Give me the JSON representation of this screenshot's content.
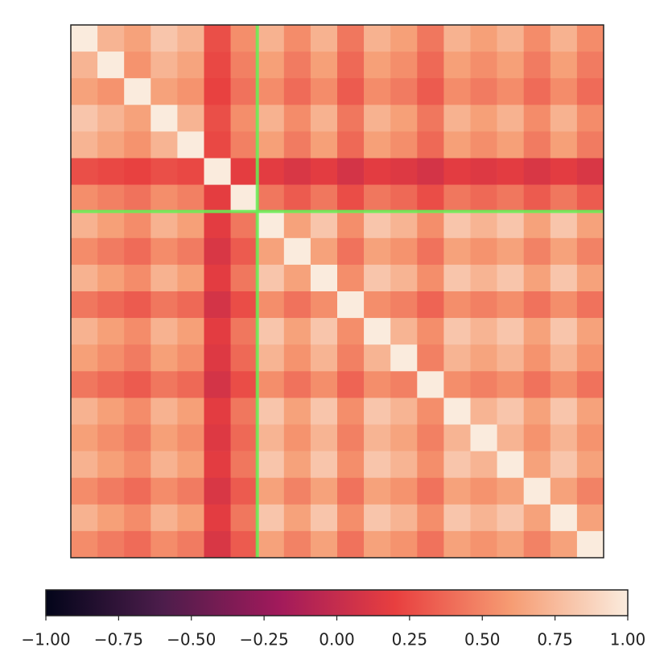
{
  "chart_data": {
    "type": "heatmap",
    "zlim": [
      -1,
      1
    ],
    "colorscale": [
      "#03051a",
      "#4c1d4b",
      "#a11a5b",
      "#e83f3f",
      "#f69c73",
      "#faebdd"
    ],
    "highlight": {
      "row": 7,
      "col": 7,
      "color": "#66ee55"
    },
    "colorbar_ticks": [
      {
        "value": -1,
        "label": "−1.00"
      },
      {
        "value": -0.75,
        "label": "−0.75"
      },
      {
        "value": -0.5,
        "label": "−0.50"
      },
      {
        "value": -0.25,
        "label": "−0.25"
      },
      {
        "value": 0,
        "label": "0.00"
      },
      {
        "value": 0.25,
        "label": "0.25"
      },
      {
        "value": 0.5,
        "label": "0.50"
      },
      {
        "value": 0.75,
        "label": "0.75"
      },
      {
        "value": 1,
        "label": "1.00"
      }
    ],
    "z": [
      [
        1,
        0.72,
        0.63,
        0.81,
        0.72,
        0.27,
        0.54,
        0.71,
        0.53,
        0.71,
        0.44,
        0.71,
        0.62,
        0.44,
        0.71,
        0.62,
        0.71,
        0.53,
        0.71,
        0.53
      ],
      [
        0.72,
        1,
        0.56,
        0.72,
        0.64,
        0.24,
        0.48,
        0.62,
        0.46,
        0.62,
        0.38,
        0.62,
        0.54,
        0.38,
        0.62,
        0.54,
        0.62,
        0.46,
        0.62,
        0.46
      ],
      [
        0.63,
        0.56,
        1,
        0.63,
        0.56,
        0.21,
        0.42,
        0.53,
        0.39,
        0.53,
        0.32,
        0.53,
        0.46,
        0.32,
        0.53,
        0.46,
        0.53,
        0.39,
        0.53,
        0.39
      ],
      [
        0.81,
        0.72,
        0.63,
        1,
        0.72,
        0.27,
        0.54,
        0.71,
        0.53,
        0.71,
        0.44,
        0.71,
        0.62,
        0.44,
        0.71,
        0.62,
        0.71,
        0.53,
        0.71,
        0.53
      ],
      [
        0.72,
        0.64,
        0.56,
        0.72,
        1,
        0.24,
        0.48,
        0.62,
        0.46,
        0.62,
        0.38,
        0.62,
        0.54,
        0.38,
        0.62,
        0.54,
        0.62,
        0.46,
        0.62,
        0.46
      ],
      [
        0.27,
        0.24,
        0.21,
        0.27,
        0.24,
        1,
        0.18,
        0.17,
        0.11,
        0.17,
        0.08,
        0.17,
        0.14,
        0.08,
        0.17,
        0.14,
        0.17,
        0.11,
        0.17,
        0.11
      ],
      [
        0.54,
        0.48,
        0.42,
        0.54,
        0.48,
        0.18,
        1,
        0.44,
        0.32,
        0.44,
        0.26,
        0.44,
        0.38,
        0.26,
        0.44,
        0.38,
        0.44,
        0.32,
        0.44,
        0.32
      ],
      [
        0.71,
        0.62,
        0.53,
        0.71,
        0.62,
        0.17,
        0.44,
        1,
        0.63,
        0.81,
        0.54,
        0.81,
        0.72,
        0.54,
        0.81,
        0.72,
        0.81,
        0.63,
        0.81,
        0.63
      ],
      [
        0.53,
        0.46,
        0.39,
        0.53,
        0.46,
        0.11,
        0.32,
        0.63,
        1,
        0.63,
        0.42,
        0.63,
        0.56,
        0.42,
        0.63,
        0.56,
        0.63,
        0.49,
        0.63,
        0.49
      ],
      [
        0.71,
        0.62,
        0.53,
        0.71,
        0.62,
        0.17,
        0.44,
        0.81,
        0.63,
        1,
        0.54,
        0.81,
        0.72,
        0.54,
        0.81,
        0.72,
        0.81,
        0.63,
        0.81,
        0.63
      ],
      [
        0.44,
        0.38,
        0.32,
        0.44,
        0.38,
        0.08,
        0.26,
        0.54,
        0.42,
        0.54,
        1,
        0.54,
        0.48,
        0.36,
        0.54,
        0.48,
        0.54,
        0.42,
        0.54,
        0.42
      ],
      [
        0.71,
        0.62,
        0.53,
        0.71,
        0.62,
        0.17,
        0.44,
        0.81,
        0.63,
        0.81,
        0.54,
        1,
        0.72,
        0.54,
        0.81,
        0.72,
        0.81,
        0.63,
        0.81,
        0.63
      ],
      [
        0.62,
        0.54,
        0.46,
        0.62,
        0.54,
        0.14,
        0.38,
        0.72,
        0.56,
        0.72,
        0.48,
        0.72,
        1,
        0.48,
        0.72,
        0.64,
        0.72,
        0.56,
        0.72,
        0.56
      ],
      [
        0.44,
        0.38,
        0.32,
        0.44,
        0.38,
        0.08,
        0.26,
        0.54,
        0.42,
        0.54,
        0.36,
        0.54,
        0.48,
        1,
        0.54,
        0.48,
        0.54,
        0.42,
        0.54,
        0.42
      ],
      [
        0.71,
        0.62,
        0.53,
        0.71,
        0.62,
        0.17,
        0.44,
        0.81,
        0.63,
        0.81,
        0.54,
        0.81,
        0.72,
        0.54,
        1,
        0.72,
        0.81,
        0.63,
        0.81,
        0.63
      ],
      [
        0.62,
        0.54,
        0.46,
        0.62,
        0.54,
        0.14,
        0.38,
        0.72,
        0.56,
        0.72,
        0.48,
        0.72,
        0.64,
        0.48,
        0.72,
        1,
        0.72,
        0.56,
        0.72,
        0.56
      ],
      [
        0.71,
        0.62,
        0.53,
        0.71,
        0.62,
        0.17,
        0.44,
        0.81,
        0.63,
        0.81,
        0.54,
        0.81,
        0.72,
        0.54,
        0.81,
        0.72,
        1,
        0.63,
        0.81,
        0.63
      ],
      [
        0.53,
        0.46,
        0.39,
        0.53,
        0.46,
        0.11,
        0.32,
        0.63,
        0.49,
        0.63,
        0.42,
        0.63,
        0.56,
        0.42,
        0.63,
        0.56,
        0.63,
        1,
        0.63,
        0.49
      ],
      [
        0.71,
        0.62,
        0.53,
        0.71,
        0.62,
        0.17,
        0.44,
        0.81,
        0.63,
        0.81,
        0.54,
        0.81,
        0.72,
        0.54,
        0.81,
        0.72,
        0.81,
        0.63,
        1,
        0.63
      ],
      [
        0.53,
        0.46,
        0.39,
        0.53,
        0.46,
        0.11,
        0.32,
        0.63,
        0.49,
        0.63,
        0.42,
        0.63,
        0.56,
        0.42,
        0.63,
        0.56,
        0.63,
        0.49,
        0.63,
        1
      ]
    ]
  }
}
